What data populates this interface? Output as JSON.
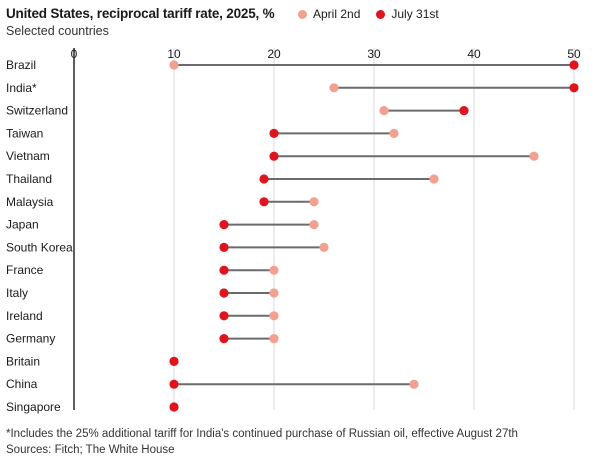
{
  "header": {
    "title": "United States, reciprocal tariff rate, 2025, %",
    "subtitle": "Selected countries"
  },
  "colors": {
    "april": "#f2a190",
    "july": "#e0141e",
    "connector": "#6b6b6b",
    "grid": "#d9d9d9",
    "axis": "#1a1a1a"
  },
  "chart_data": {
    "type": "dumbbell",
    "title": "United States, reciprocal tariff rate, 2025, %",
    "subtitle": "Selected countries",
    "xlim": [
      0,
      50
    ],
    "xticks": [
      "0",
      "10",
      "20",
      "30",
      "40",
      "50"
    ],
    "xtick_values": [
      0,
      10,
      20,
      30,
      40,
      50
    ],
    "legend": [
      {
        "key": "april",
        "label": "April 2nd"
      },
      {
        "key": "july",
        "label": "July 31st"
      }
    ],
    "categories": [
      "Brazil",
      "India*",
      "Switzerland",
      "Taiwan",
      "Vietnam",
      "Thailand",
      "Malaysia",
      "Japan",
      "South Korea",
      "France",
      "Italy",
      "Ireland",
      "Germany",
      "Britain",
      "China",
      "Singapore"
    ],
    "series": [
      {
        "name": "April 2nd",
        "key": "april",
        "values": [
          10,
          26,
          31,
          32,
          46,
          36,
          24,
          24,
          25,
          20,
          20,
          20,
          20,
          10,
          34,
          10
        ]
      },
      {
        "name": "July 31st",
        "key": "july",
        "values": [
          50,
          50,
          39,
          20,
          20,
          19,
          19,
          15,
          15,
          15,
          15,
          15,
          15,
          10,
          10,
          10
        ]
      }
    ]
  },
  "footer": {
    "footnote": "*Includes the 25% additional tariff for India's continued purchase of Russian oil, effective August 27th",
    "source": "Sources: Fitch; The White House"
  }
}
